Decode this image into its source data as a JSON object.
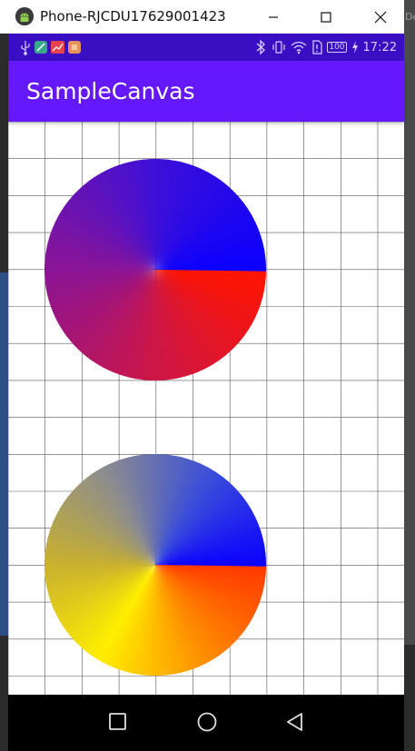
{
  "window": {
    "title": "Phone-RJCDU17629001423",
    "backdrop_text": "De"
  },
  "status_bar": {
    "time": "17:22",
    "battery": "100",
    "left_icons": [
      "usb-icon",
      "app-notification-icon",
      "chart-app-icon",
      "package-icon"
    ],
    "right_icons": [
      "bluetooth-icon",
      "vibrate-icon",
      "wifi-icon",
      "sim-icon",
      "battery-icon",
      "charging-icon"
    ]
  },
  "app_bar": {
    "title": "SampleCanvas",
    "color": "#6518fb"
  },
  "canvas": {
    "background": "#ffffff",
    "grid_color": "#555555",
    "circles": [
      {
        "name": "sweep-gradient-circle-1",
        "colors": [
          "#ff1500",
          "#cc1648",
          "#8a1596",
          "#3d10d8",
          "#0a00ff"
        ]
      },
      {
        "name": "sweep-gradient-circle-2",
        "colors": [
          "#ff3a00",
          "#ff8c00",
          "#ffee00",
          "#c8b030",
          "#8d8d8d",
          "#3b4fd9",
          "#0a00ff"
        ]
      }
    ]
  },
  "nav_bar": {
    "buttons": [
      "recents-button",
      "home-button",
      "back-button"
    ]
  }
}
